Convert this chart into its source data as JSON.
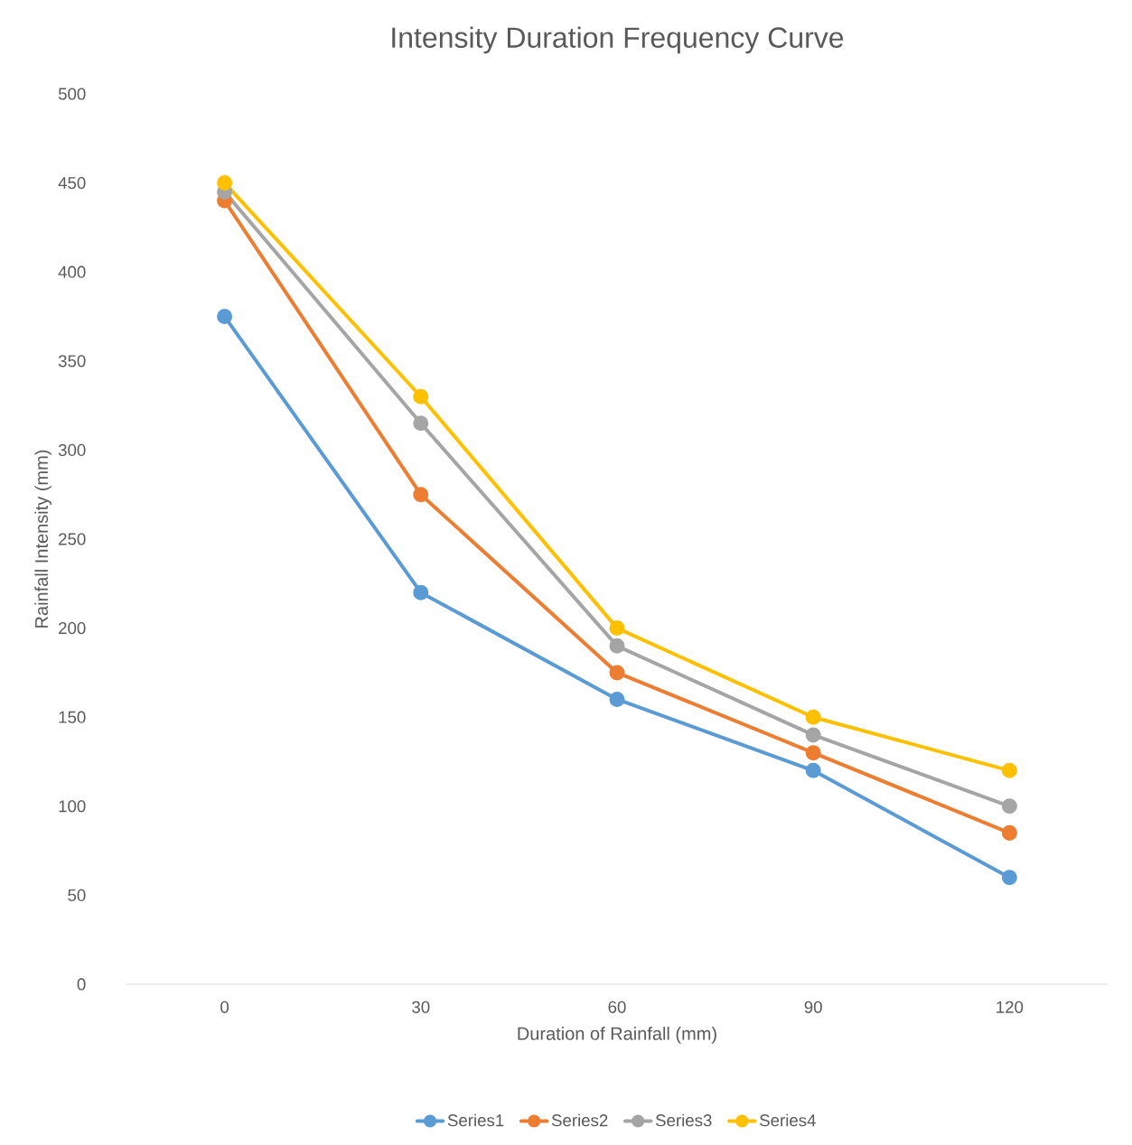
{
  "chart_data": {
    "type": "line",
    "title": "Intensity Duration Frequency Curve",
    "xlabel": "Duration of Rainfall (mm)",
    "ylabel": "Rainfall Intensity (mm)",
    "categories": [
      "0",
      "30",
      "60",
      "90",
      "120"
    ],
    "series": [
      {
        "name": "Series1",
        "color": "#5b9bd5",
        "values": [
          375,
          220,
          160,
          120,
          60
        ]
      },
      {
        "name": "Series2",
        "color": "#ed7d31",
        "values": [
          440,
          275,
          175,
          130,
          85
        ]
      },
      {
        "name": "Series3",
        "color": "#a5a5a5",
        "values": [
          445,
          315,
          190,
          140,
          100
        ]
      },
      {
        "name": "Series4",
        "color": "#ffc000",
        "values": [
          450,
          330,
          200,
          150,
          120
        ]
      }
    ],
    "ylim": [
      0,
      500
    ],
    "yticks": [
      0,
      50,
      100,
      150,
      200,
      250,
      300,
      350,
      400,
      450,
      500
    ],
    "legend": "bottom",
    "marker": "circle"
  }
}
